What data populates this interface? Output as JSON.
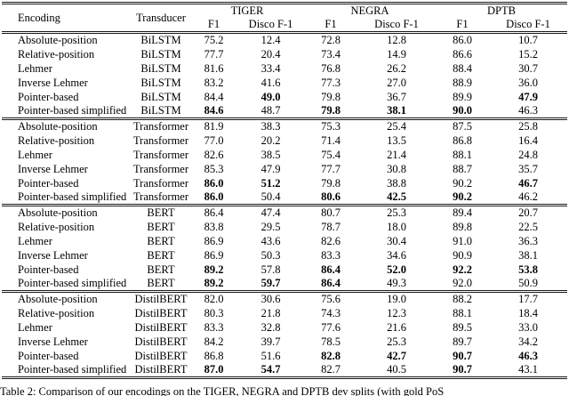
{
  "table": {
    "headers": {
      "encoding": "Encoding",
      "transducer": "Transducer",
      "f1": "F1",
      "disco": "Disco F-1"
    },
    "col_groups": [
      {
        "label": "TIGER"
      },
      {
        "label": "NEGRA"
      },
      {
        "label": "DPTB"
      }
    ],
    "groups": [
      {
        "transducer": "BiLSTM",
        "rows": [
          {
            "encoding": "Absolute-position",
            "values": [
              "75.2",
              "12.4",
              "72.8",
              "12.8",
              "86.0",
              "10.7"
            ],
            "bold": []
          },
          {
            "encoding": "Relative-position",
            "values": [
              "77.7",
              "20.4",
              "73.4",
              "14.9",
              "86.6",
              "15.2"
            ],
            "bold": []
          },
          {
            "encoding": "Lehmer",
            "values": [
              "81.6",
              "33.4",
              "76.8",
              "26.2",
              "88.4",
              "30.7"
            ],
            "bold": []
          },
          {
            "encoding": "Inverse Lehmer",
            "values": [
              "83.2",
              "41.6",
              "77.3",
              "27.0",
              "88.9",
              "36.0"
            ],
            "bold": []
          },
          {
            "encoding": "Pointer-based",
            "values": [
              "84.4",
              "49.0",
              "79.8",
              "36.7",
              "89.9",
              "47.9"
            ],
            "bold": [
              1,
              5
            ]
          },
          {
            "encoding": "Pointer-based simplified",
            "values": [
              "84.6",
              "48.7",
              "79.8",
              "38.1",
              "90.0",
              "46.3"
            ],
            "bold": [
              0,
              2,
              3,
              4
            ]
          }
        ]
      },
      {
        "transducer": "Transformer",
        "rows": [
          {
            "encoding": "Absolute-position",
            "values": [
              "81.9",
              "38.3",
              "75.3",
              "25.4",
              "87.5",
              "25.8"
            ],
            "bold": []
          },
          {
            "encoding": "Relative-position",
            "values": [
              "77.0",
              "20.2",
              "71.4",
              "13.5",
              "86.8",
              "16.4"
            ],
            "bold": []
          },
          {
            "encoding": "Lehmer",
            "values": [
              "82.6",
              "38.5",
              "75.4",
              "21.4",
              "88.1",
              "24.8"
            ],
            "bold": []
          },
          {
            "encoding": "Inverse Lehmer",
            "values": [
              "85.3",
              "47.9",
              "77.7",
              "30.8",
              "88.7",
              "35.7"
            ],
            "bold": []
          },
          {
            "encoding": "Pointer-based",
            "values": [
              "86.0",
              "51.2",
              "79.8",
              "38.8",
              "90.2",
              "46.7"
            ],
            "bold": [
              0,
              1,
              5
            ]
          },
          {
            "encoding": "Pointer-based simplified",
            "values": [
              "86.0",
              "50.4",
              "80.6",
              "42.5",
              "90.2",
              "46.2"
            ],
            "bold": [
              0,
              2,
              3,
              4
            ]
          }
        ]
      },
      {
        "transducer": "BERT",
        "rows": [
          {
            "encoding": "Absolute-position",
            "values": [
              "86.4",
              "47.4",
              "80.7",
              "25.3",
              "89.4",
              "20.7"
            ],
            "bold": []
          },
          {
            "encoding": "Relative-position",
            "values": [
              "83.8",
              "29.5",
              "78.7",
              "18.0",
              "89.8",
              "22.5"
            ],
            "bold": []
          },
          {
            "encoding": "Lehmer",
            "values": [
              "86.9",
              "43.6",
              "82.6",
              "30.4",
              "91.0",
              "36.3"
            ],
            "bold": []
          },
          {
            "encoding": "Inverse Lehmer",
            "values": [
              "86.9",
              "50.3",
              "83.3",
              "34.6",
              "90.9",
              "38.1"
            ],
            "bold": []
          },
          {
            "encoding": "Pointer-based",
            "values": [
              "89.2",
              "57.8",
              "86.4",
              "52.0",
              "92.2",
              "53.8"
            ],
            "bold": [
              0,
              2,
              3,
              4,
              5
            ]
          },
          {
            "encoding": "Pointer-based simplified",
            "values": [
              "89.2",
              "59.7",
              "86.4",
              "49.3",
              "92.0",
              "50.9"
            ],
            "bold": [
              0,
              1,
              2
            ]
          }
        ]
      },
      {
        "transducer": "DistilBERT",
        "rows": [
          {
            "encoding": "Absolute-position",
            "values": [
              "82.0",
              "30.6",
              "75.6",
              "19.0",
              "88.2",
              "17.7"
            ],
            "bold": []
          },
          {
            "encoding": "Relative-position",
            "values": [
              "80.3",
              "21.8",
              "74.3",
              "12.3",
              "88.1",
              "18.4"
            ],
            "bold": []
          },
          {
            "encoding": "Lehmer",
            "values": [
              "83.3",
              "32.8",
              "77.6",
              "21.6",
              "89.5",
              "33.0"
            ],
            "bold": []
          },
          {
            "encoding": "Inverse Lehmer",
            "values": [
              "84.2",
              "39.7",
              "78.5",
              "25.3",
              "89.7",
              "34.2"
            ],
            "bold": []
          },
          {
            "encoding": "Pointer-based",
            "values": [
              "86.8",
              "51.6",
              "82.8",
              "42.7",
              "90.7",
              "46.3"
            ],
            "bold": [
              2,
              3,
              4,
              5
            ]
          },
          {
            "encoding": "Pointer-based simplified",
            "values": [
              "87.0",
              "54.7",
              "82.7",
              "40.5",
              "90.7",
              "43.1"
            ],
            "bold": [
              0,
              1,
              4
            ]
          }
        ]
      }
    ]
  },
  "caption": "Table 2:  Comparison of our encodings on the TIGER, NEGRA and DPTB dev splits (with gold PoS"
}
